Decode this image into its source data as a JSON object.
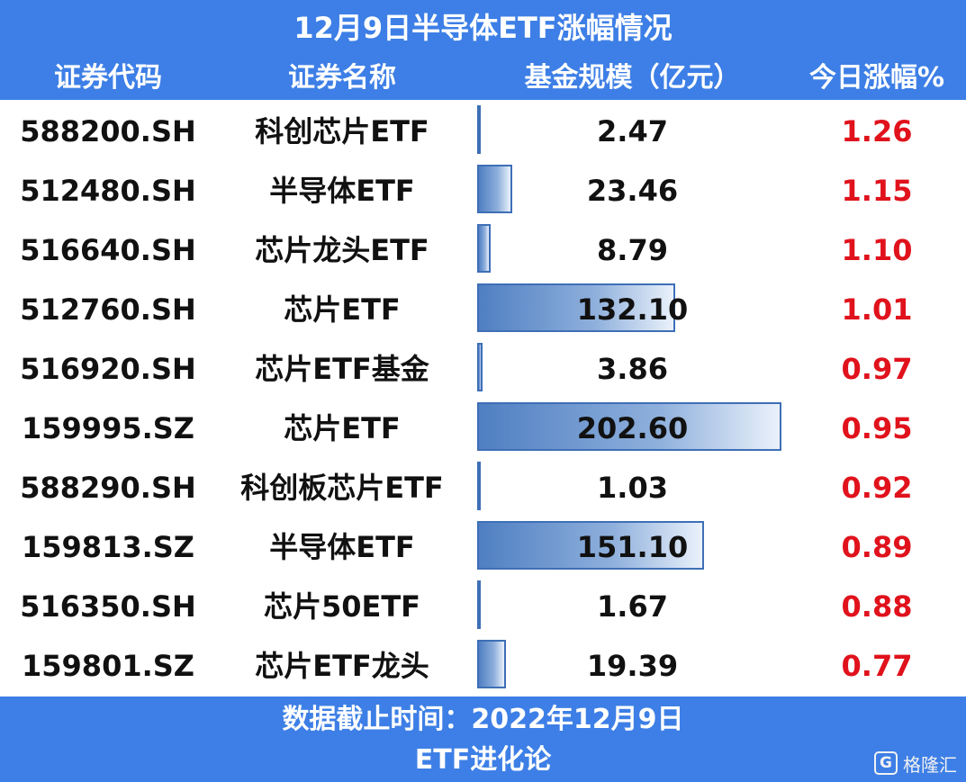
{
  "title": "12月9日半导体ETF涨幅情况",
  "headers": {
    "code": "证券代码",
    "name": "证券名称",
    "size": "基金规模（亿元）",
    "change": "今日涨幅%"
  },
  "colors": {
    "header_bg": "#3d7fe6",
    "header_text": "#ffffff",
    "change_text": "#e0121c",
    "bar_fill": "#4f7fc2",
    "bar_border": "#3e6fb6"
  },
  "chart_data": {
    "type": "table",
    "title": "12月9日半导体ETF涨幅情况",
    "columns": [
      "证券代码",
      "证券名称",
      "基金规模（亿元）",
      "今日涨幅%"
    ],
    "bar_column": "基金规模（亿元）",
    "bar_max": 202.6,
    "rows": [
      {
        "code": "588200.SH",
        "name": "科创芯片ETF",
        "size": "2.47",
        "size_value": 2.47,
        "change": "1.26"
      },
      {
        "code": "512480.SH",
        "name": "半导体ETF",
        "size": "23.46",
        "size_value": 23.46,
        "change": "1.15"
      },
      {
        "code": "516640.SH",
        "name": "芯片龙头ETF",
        "size": "8.79",
        "size_value": 8.79,
        "change": "1.10"
      },
      {
        "code": "512760.SH",
        "name": "芯片ETF",
        "size": "132.10",
        "size_value": 132.1,
        "change": "1.01"
      },
      {
        "code": "516920.SH",
        "name": "芯片ETF基金",
        "size": "3.86",
        "size_value": 3.86,
        "change": "0.97"
      },
      {
        "code": "159995.SZ",
        "name": "芯片ETF",
        "size": "202.60",
        "size_value": 202.6,
        "change": "0.95"
      },
      {
        "code": "588290.SH",
        "name": "科创板芯片ETF",
        "size": "1.03",
        "size_value": 1.03,
        "change": "0.92"
      },
      {
        "code": "159813.SZ",
        "name": "半导体ETF",
        "size": "151.10",
        "size_value": 151.1,
        "change": "0.89"
      },
      {
        "code": "516350.SH",
        "name": "芯片50ETF",
        "size": "1.67",
        "size_value": 1.67,
        "change": "0.88"
      },
      {
        "code": "159801.SZ",
        "name": "芯片ETF龙头",
        "size": "19.39",
        "size_value": 19.39,
        "change": "0.77"
      }
    ]
  },
  "footer": {
    "date_line": "数据截止时间：2022年12月9日",
    "source_line": "ETF进化论",
    "watermark_icon": "G",
    "watermark_text": "格隆汇"
  }
}
